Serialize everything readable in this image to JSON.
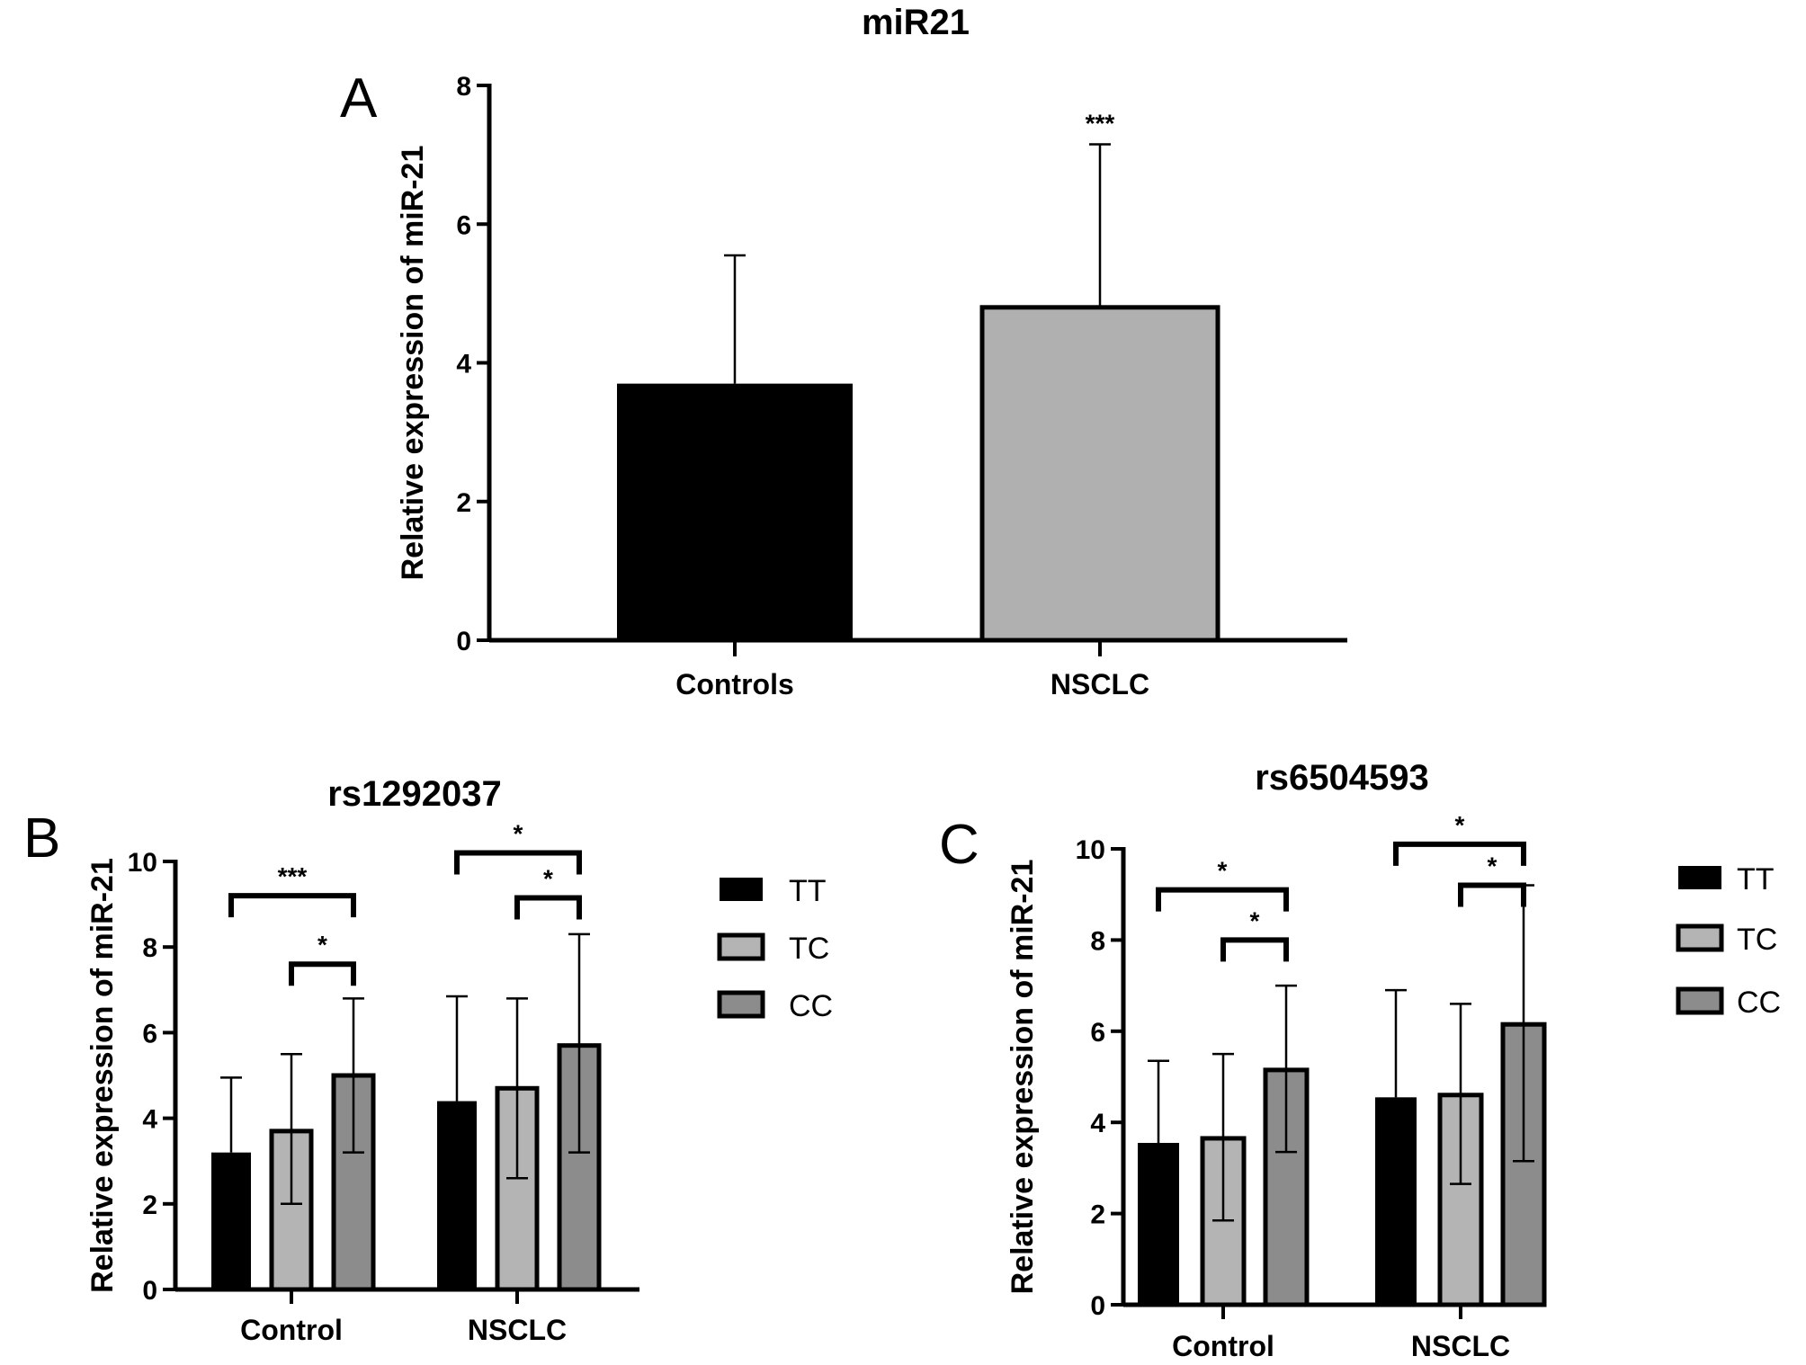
{
  "chart_data": [
    {
      "type": "bar",
      "panel_label": "A",
      "title": "miR21",
      "ylabel": "Relative expression of miR-21",
      "xlabel": "",
      "ylim": [
        0,
        8
      ],
      "yticks": [
        "0",
        "2",
        "4",
        "6",
        "8"
      ],
      "categories": [
        "Controls",
        "NSCLC"
      ],
      "values": [
        3.7,
        4.8
      ],
      "error_upper": [
        5.55,
        7.15
      ],
      "colors": [
        "#000000",
        "#b0b0b0"
      ],
      "annotations": [
        {
          "category": "NSCLC",
          "text": "***"
        }
      ]
    },
    {
      "type": "bar",
      "panel_label": "B",
      "title": "rs1292037",
      "ylabel": "Relative expression of miR-21",
      "ylim": [
        0,
        10
      ],
      "yticks": [
        "0",
        "2",
        "4",
        "6",
        "8",
        "10"
      ],
      "categories": [
        "Control",
        "NSCLC"
      ],
      "legend": {
        "placement": "right",
        "entries": [
          "TT",
          "TC",
          "CC"
        ]
      },
      "series": [
        {
          "name": "TT",
          "color": "#000000",
          "values": [
            3.2,
            4.4
          ],
          "error_upper": [
            4.95,
            6.85
          ],
          "error_lower": [
            null,
            null
          ]
        },
        {
          "name": "TC",
          "color": "#b4b4b4",
          "values": [
            3.7,
            4.7
          ],
          "error_upper": [
            5.5,
            6.8
          ],
          "error_lower": [
            2.0,
            2.6
          ]
        },
        {
          "name": "CC",
          "color": "#8c8c8c",
          "values": [
            5.0,
            5.7
          ],
          "error_upper": [
            6.8,
            8.3
          ],
          "error_lower": [
            3.2,
            3.2
          ]
        }
      ],
      "significance": [
        {
          "group": "Control",
          "from": "TT",
          "to": "CC",
          "level": 9.2,
          "text": "***"
        },
        {
          "group": "Control",
          "from": "TC",
          "to": "CC",
          "level": 7.6,
          "text": "*"
        },
        {
          "group": "NSCLC",
          "from": "TT",
          "to": "CC",
          "level": 10.2,
          "text": "*"
        },
        {
          "group": "NSCLC",
          "from": "TC",
          "to": "CC",
          "level": 9.15,
          "text": "*"
        }
      ]
    },
    {
      "type": "bar",
      "panel_label": "C",
      "title": "rs6504593",
      "ylabel": "Relative expression of miR-21",
      "ylim": [
        0,
        10
      ],
      "yticks": [
        "0",
        "2",
        "4",
        "6",
        "8",
        "10"
      ],
      "categories": [
        "Control",
        "NSCLC"
      ],
      "legend": {
        "placement": "right",
        "entries": [
          "TT",
          "TC",
          "CC"
        ]
      },
      "series": [
        {
          "name": "TT",
          "color": "#000000",
          "values": [
            3.55,
            4.55
          ],
          "error_upper": [
            5.35,
            6.9
          ],
          "error_lower": [
            null,
            null
          ]
        },
        {
          "name": "TC",
          "color": "#b4b4b4",
          "values": [
            3.65,
            4.6
          ],
          "error_upper": [
            5.5,
            6.6
          ],
          "error_lower": [
            1.85,
            2.65
          ]
        },
        {
          "name": "CC",
          "color": "#8c8c8c",
          "values": [
            5.15,
            6.15
          ],
          "error_upper": [
            7.0,
            9.2
          ],
          "error_lower": [
            3.35,
            3.15
          ]
        }
      ],
      "significance": [
        {
          "group": "Control",
          "from": "TT",
          "to": "CC",
          "level": 9.1,
          "text": "*"
        },
        {
          "group": "Control",
          "from": "TC",
          "to": "CC",
          "level": 8.0,
          "text": "*"
        },
        {
          "group": "NSCLC",
          "from": "TT",
          "to": "CC",
          "level": 10.1,
          "text": "*"
        },
        {
          "group": "NSCLC",
          "from": "TC",
          "to": "CC",
          "level": 9.2,
          "text": "*"
        }
      ]
    }
  ]
}
